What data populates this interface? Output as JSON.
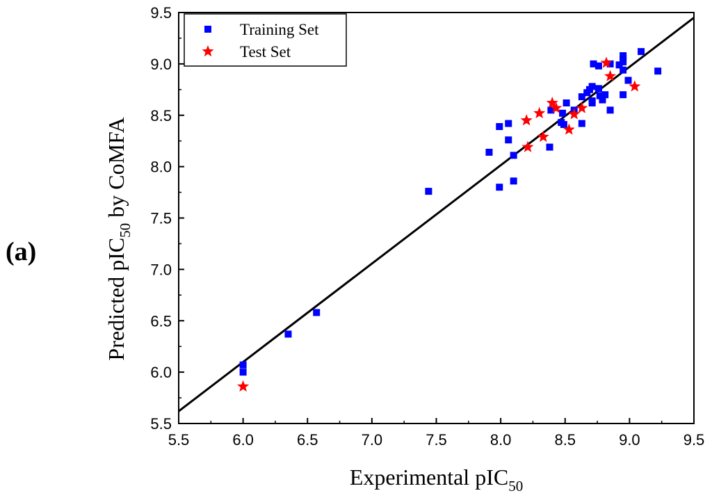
{
  "panel_label": "(a)",
  "chart_data": {
    "type": "scatter",
    "title": "",
    "xlabel": "Experimental pIC",
    "xlabel_sub": "50",
    "ylabel": "Predicted pIC",
    "ylabel_sub": "50",
    "ylabel_suffix": " by CoMFA",
    "xlim": [
      5.5,
      9.5
    ],
    "ylim": [
      5.5,
      9.5
    ],
    "xticks": [
      "5.5",
      "6.0",
      "6.5",
      "7.0",
      "7.5",
      "8.0",
      "8.5",
      "9.0",
      "9.5"
    ],
    "yticks": [
      "5.5",
      "6.0",
      "6.5",
      "7.0",
      "7.5",
      "8.0",
      "8.5",
      "9.0",
      "9.5"
    ],
    "legend_position": "top-left",
    "fit_line": {
      "x": [
        5.5,
        9.5
      ],
      "y": [
        5.62,
        9.45
      ]
    },
    "series": [
      {
        "name": "Training Set",
        "marker": "square",
        "color": "#0000ff",
        "points": [
          [
            6.0,
            6.07
          ],
          [
            6.0,
            6.0
          ],
          [
            6.35,
            6.37
          ],
          [
            6.57,
            6.58
          ],
          [
            7.44,
            7.76
          ],
          [
            7.91,
            8.14
          ],
          [
            7.99,
            8.39
          ],
          [
            7.99,
            7.8
          ],
          [
            8.06,
            8.42
          ],
          [
            8.06,
            8.26
          ],
          [
            8.1,
            8.11
          ],
          [
            8.1,
            7.86
          ],
          [
            8.38,
            8.19
          ],
          [
            8.39,
            8.55
          ],
          [
            8.47,
            8.43
          ],
          [
            8.48,
            8.52
          ],
          [
            8.49,
            8.41
          ],
          [
            8.51,
            8.62
          ],
          [
            8.57,
            8.55
          ],
          [
            8.63,
            8.68
          ],
          [
            8.63,
            8.42
          ],
          [
            8.67,
            8.72
          ],
          [
            8.69,
            8.75
          ],
          [
            8.71,
            8.78
          ],
          [
            8.71,
            8.64
          ],
          [
            8.71,
            8.62
          ],
          [
            8.72,
            9.0
          ],
          [
            8.76,
            8.98
          ],
          [
            8.76,
            8.76
          ],
          [
            8.77,
            8.69
          ],
          [
            8.79,
            8.65
          ],
          [
            8.81,
            8.7
          ],
          [
            8.85,
            9.0
          ],
          [
            8.85,
            8.55
          ],
          [
            8.92,
            8.99
          ],
          [
            8.95,
            9.08
          ],
          [
            8.95,
            9.05
          ],
          [
            8.95,
            9.02
          ],
          [
            8.95,
            8.94
          ],
          [
            8.95,
            8.7
          ],
          [
            8.99,
            8.84
          ],
          [
            9.09,
            9.12
          ],
          [
            9.22,
            8.93
          ]
        ]
      },
      {
        "name": "Test Set",
        "marker": "star",
        "color": "#ff0000",
        "points": [
          [
            6.0,
            5.86
          ],
          [
            8.2,
            8.45
          ],
          [
            8.21,
            8.19
          ],
          [
            8.3,
            8.52
          ],
          [
            8.33,
            8.29
          ],
          [
            8.4,
            8.62
          ],
          [
            8.43,
            8.57
          ],
          [
            8.53,
            8.36
          ],
          [
            8.57,
            8.51
          ],
          [
            8.63,
            8.57
          ],
          [
            8.82,
            9.01
          ],
          [
            8.85,
            8.88
          ],
          [
            9.04,
            8.78
          ]
        ]
      }
    ]
  }
}
